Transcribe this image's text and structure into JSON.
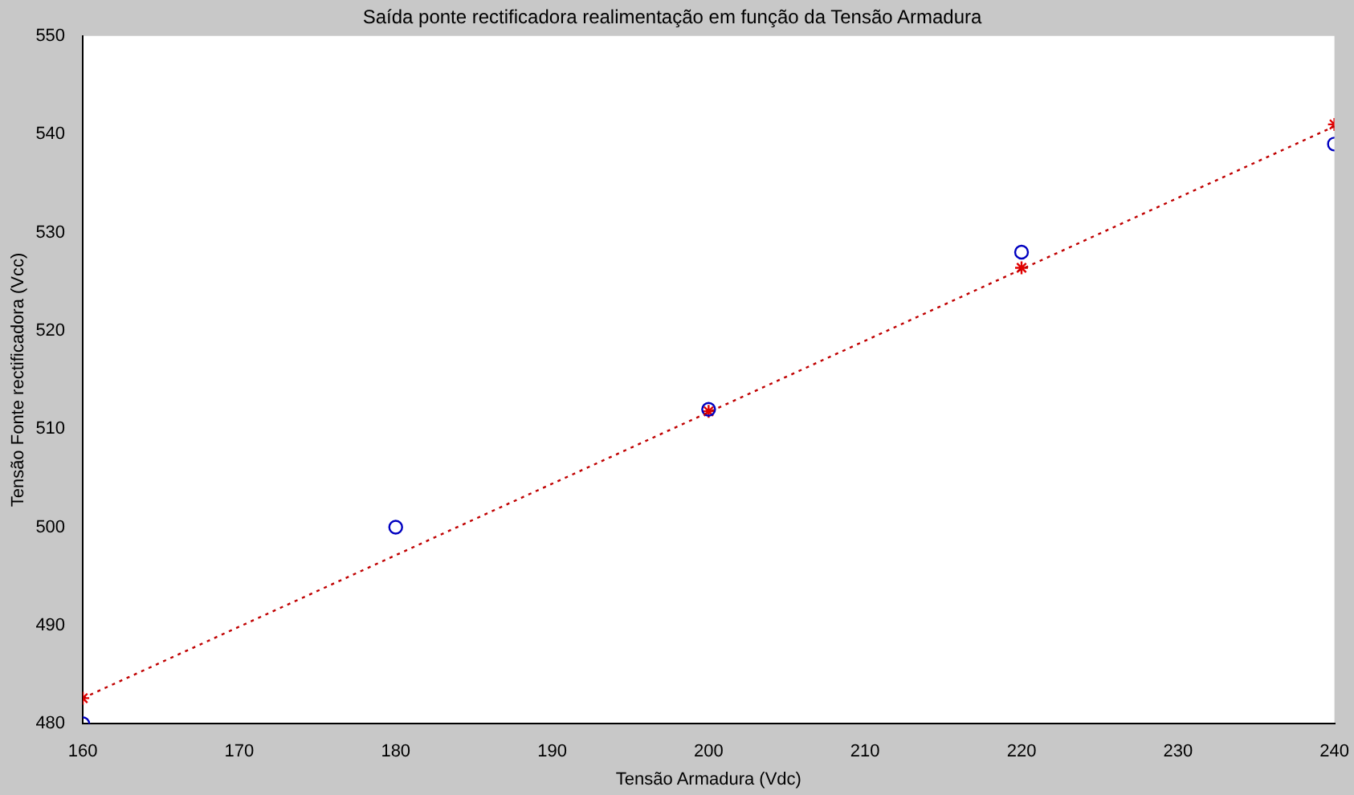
{
  "chart_data": {
    "type": "scatter",
    "title": "Saída ponte rectificadora realimentação em função da Tensão Armadura",
    "xlabel": "Tensão Armadura (Vdc)",
    "ylabel": "Tensão Fonte rectificadora (Vcc)",
    "xlim": [
      160,
      240
    ],
    "xticks": [
      160,
      170,
      180,
      190,
      200,
      210,
      220,
      230,
      240
    ],
    "ylim": [
      480,
      550
    ],
    "yticks": [
      480,
      490,
      500,
      510,
      520,
      530,
      540,
      550
    ],
    "grid": false,
    "legend": false,
    "series": [
      {
        "type": "line",
        "color": "#c00000",
        "x": [
          160,
          240
        ],
        "values": [
          482.6,
          540.8
        ],
        "marker": "none",
        "line_style": "dotted"
      },
      {
        "type": "scatter",
        "color": "#0000c0",
        "x": [
          160,
          180,
          200,
          220,
          240
        ],
        "values": [
          480,
          500,
          512,
          528,
          539
        ],
        "marker": "circle"
      },
      {
        "type": "scatter",
        "color": "#e00000",
        "x": [
          160,
          200,
          220,
          240
        ],
        "values": [
          482.6,
          511.8,
          526.4,
          541
        ],
        "marker": "cross"
      }
    ]
  }
}
